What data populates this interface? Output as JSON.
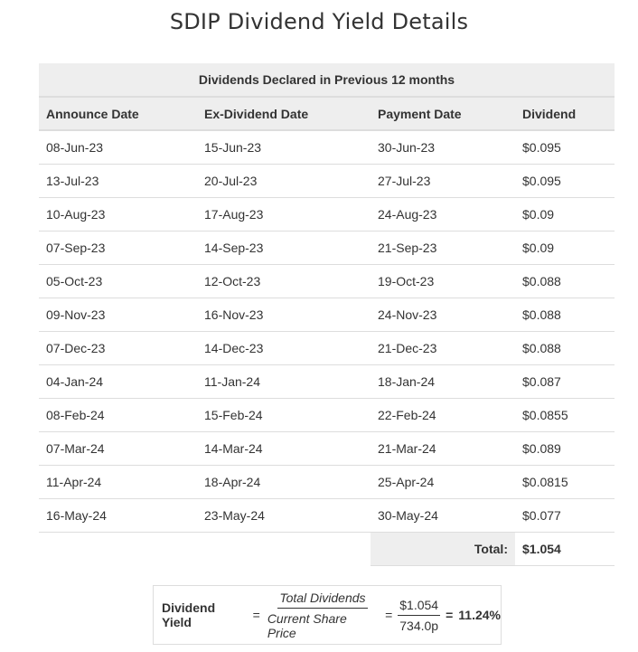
{
  "title": "SDIP Dividend Yield Details",
  "table": {
    "caption": "Dividends Declared in Previous 12 months",
    "headers": [
      "Announce Date",
      "Ex-Dividend Date",
      "Payment Date",
      "Dividend"
    ],
    "rows": [
      [
        "08-Jun-23",
        "15-Jun-23",
        "30-Jun-23",
        "$0.095"
      ],
      [
        "13-Jul-23",
        "20-Jul-23",
        "27-Jul-23",
        "$0.095"
      ],
      [
        "10-Aug-23",
        "17-Aug-23",
        "24-Aug-23",
        "$0.09"
      ],
      [
        "07-Sep-23",
        "14-Sep-23",
        "21-Sep-23",
        "$0.09"
      ],
      [
        "05-Oct-23",
        "12-Oct-23",
        "19-Oct-23",
        "$0.088"
      ],
      [
        "09-Nov-23",
        "16-Nov-23",
        "24-Nov-23",
        "$0.088"
      ],
      [
        "07-Dec-23",
        "14-Dec-23",
        "21-Dec-23",
        "$0.088"
      ],
      [
        "04-Jan-24",
        "11-Jan-24",
        "18-Jan-24",
        "$0.087"
      ],
      [
        "08-Feb-24",
        "15-Feb-24",
        "22-Feb-24",
        "$0.0855"
      ],
      [
        "07-Mar-24",
        "14-Mar-24",
        "21-Mar-24",
        "$0.089"
      ],
      [
        "11-Apr-24",
        "18-Apr-24",
        "25-Apr-24",
        "$0.0815"
      ],
      [
        "16-May-24",
        "23-May-24",
        "30-May-24",
        "$0.077"
      ]
    ],
    "total_label": "Total:",
    "total_value": "$1.054"
  },
  "yield": {
    "label": "Dividend Yield",
    "equals": "=",
    "formula_numerator": "Total Dividends",
    "formula_denominator": "Current Share Price",
    "value_numerator": "$1.054",
    "value_denominator": "734.0p",
    "result": "11.24%"
  }
}
